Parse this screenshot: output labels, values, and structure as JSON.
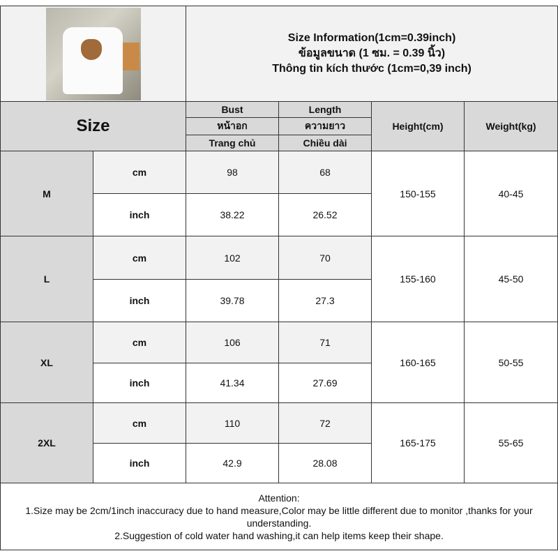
{
  "header": {
    "title_lines": [
      "Size Information(1cm=0.39inch)",
      "ข้อมูลขนาด (1 ซม. = 0.39 นิ้ว)",
      "Thông tin kích thước (1cm=0,39 inch)"
    ],
    "size_label": "Size"
  },
  "columns": {
    "bust": [
      "Bust",
      "หน้าอก",
      "Trang chủ"
    ],
    "length": [
      "Length",
      "ความยาว",
      "Chiều dài"
    ],
    "height": "Height(cm)",
    "weight": "Weight(kg)"
  },
  "rows": [
    {
      "size": "M",
      "cm_label": "cm",
      "inch_label": "inch",
      "bust_cm": "98",
      "length_cm": "68",
      "bust_in": "38.22",
      "length_in": "26.52",
      "height": "150-155",
      "weight": "40-45"
    },
    {
      "size": "L",
      "cm_label": "cm",
      "inch_label": "inch",
      "bust_cm": "102",
      "length_cm": "70",
      "bust_in": "39.78",
      "length_in": "27.3",
      "height": "155-160",
      "weight": "45-50"
    },
    {
      "size": "XL",
      "cm_label": "cm",
      "inch_label": "inch",
      "bust_cm": "106",
      "length_cm": "71",
      "bust_in": "41.34",
      "length_in": "27.69",
      "height": "160-165",
      "weight": "50-55"
    },
    {
      "size": "2XL",
      "cm_label": "cm",
      "inch_label": "inch",
      "bust_cm": "110",
      "length_cm": "72",
      "bust_in": "42.9",
      "length_in": "28.08",
      "height": "165-175",
      "weight": "55-65"
    }
  ],
  "attention": {
    "title": "Attention:",
    "line1": "1.Size may be 2cm/1inch inaccuracy due to hand measure,Color may be little different due to monitor ,thanks for your understanding.",
    "line2": "2.Suggestion of cold water hand washing,it can help items keep their shape."
  }
}
